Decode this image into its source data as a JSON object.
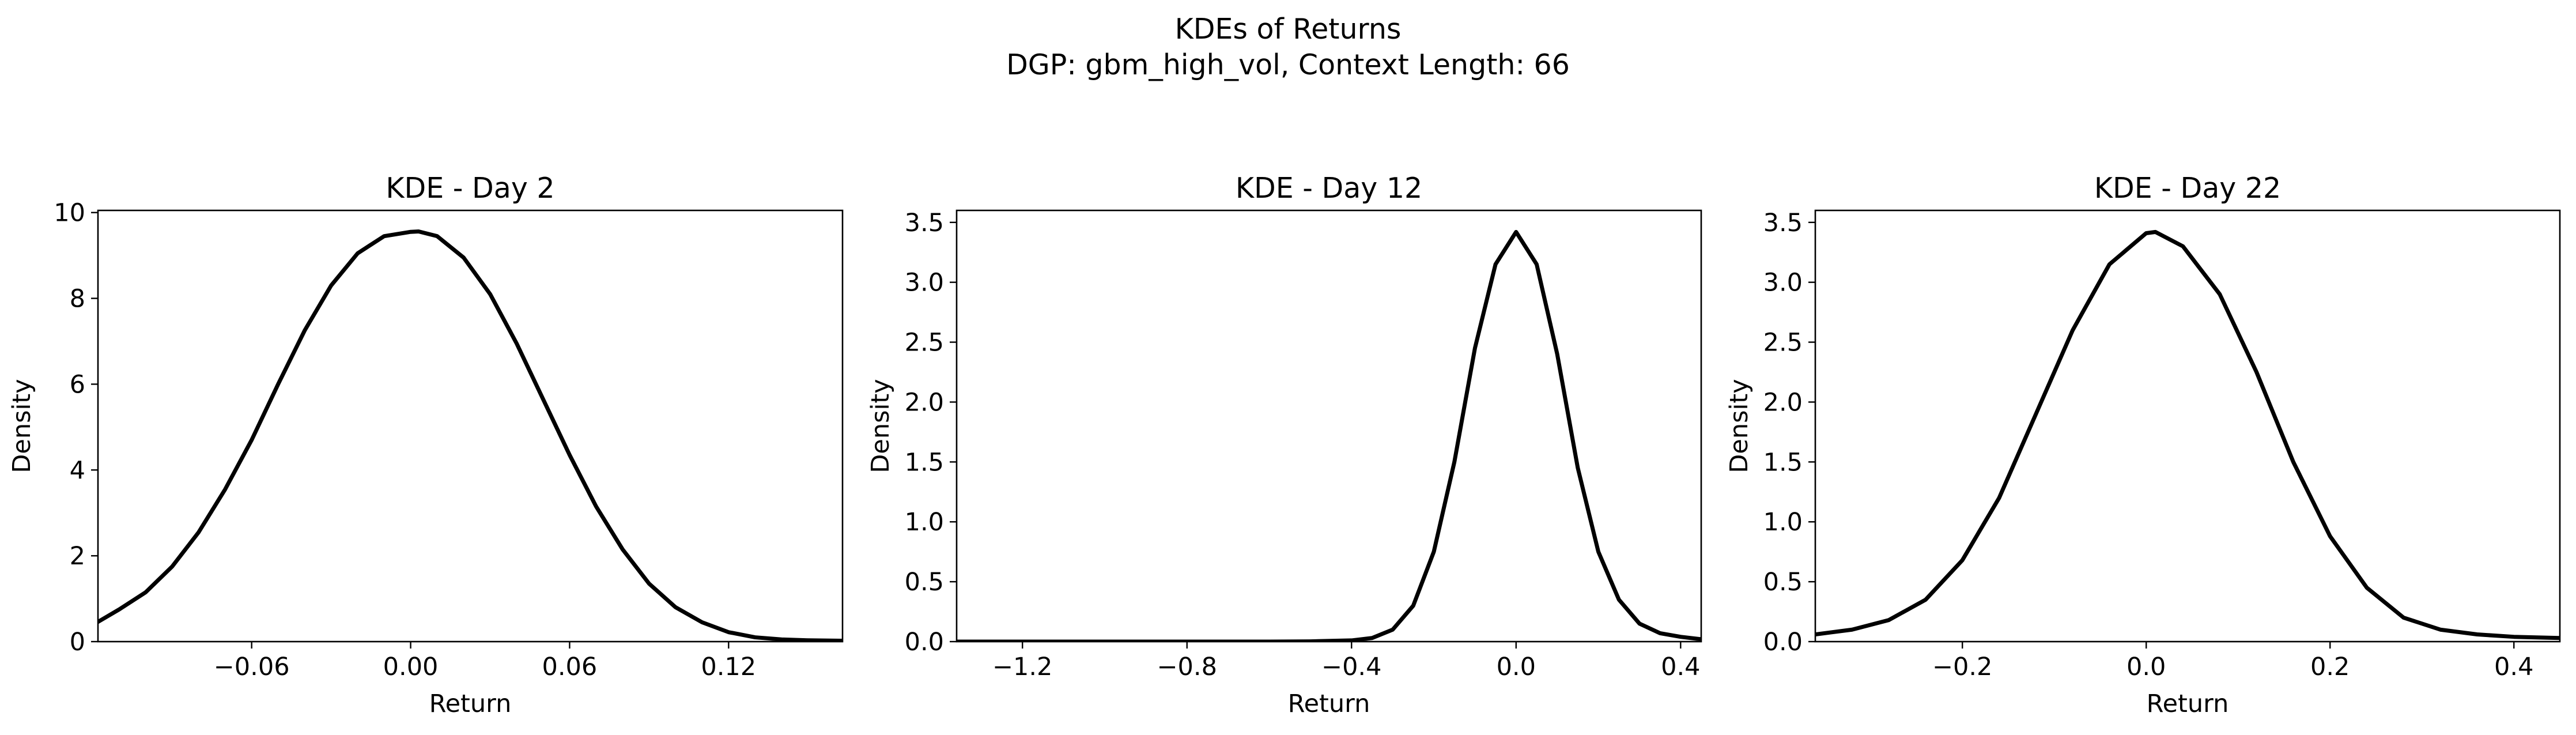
{
  "figure": {
    "title_line1": "KDEs of Returns",
    "title_line2": "DGP: gbm_high_vol, Context Length: 66"
  },
  "chart_data": [
    {
      "type": "line",
      "title": "KDE - Day 2",
      "xlabel": "Return",
      "ylabel": "Density",
      "xlim": [
        -0.118,
        0.163
      ],
      "ylim": [
        0,
        10.05
      ],
      "xticks": [
        -0.06,
        0.0,
        0.06,
        0.12
      ],
      "xtick_labels": [
        "−0.06",
        "0.00",
        "0.06",
        "0.12"
      ],
      "yticks": [
        0,
        2,
        4,
        6,
        8,
        10
      ],
      "ytick_labels": [
        "0",
        "2",
        "4",
        "6",
        "8",
        "10"
      ],
      "grid": false,
      "series": [
        {
          "color": "#000000",
          "x": [
            -0.118,
            -0.11,
            -0.1,
            -0.09,
            -0.08,
            -0.07,
            -0.06,
            -0.05,
            -0.04,
            -0.03,
            -0.02,
            -0.01,
            0.0,
            0.003,
            0.01,
            0.02,
            0.03,
            0.04,
            0.05,
            0.06,
            0.07,
            0.08,
            0.09,
            0.1,
            0.11,
            0.12,
            0.13,
            0.14,
            0.15,
            0.163
          ],
          "y": [
            0.46,
            0.75,
            1.15,
            1.75,
            2.55,
            3.55,
            4.7,
            6.0,
            7.25,
            8.3,
            9.05,
            9.45,
            9.55,
            9.56,
            9.45,
            8.95,
            8.1,
            6.95,
            5.65,
            4.35,
            3.15,
            2.15,
            1.35,
            0.8,
            0.45,
            0.22,
            0.1,
            0.05,
            0.03,
            0.02
          ]
        }
      ]
    },
    {
      "type": "line",
      "title": "KDE - Day 12",
      "xlabel": "Return",
      "ylabel": "Density",
      "xlim": [
        -1.36,
        0.45
      ],
      "ylim": [
        0,
        3.6
      ],
      "xticks": [
        -1.2,
        -0.8,
        -0.4,
        0.0,
        0.4
      ],
      "xtick_labels": [
        "−1.2",
        "−0.8",
        "−0.4",
        "0.0",
        "0.4"
      ],
      "yticks": [
        0.0,
        0.5,
        1.0,
        1.5,
        2.0,
        2.5,
        3.0,
        3.5
      ],
      "ytick_labels": [
        "0.0",
        "0.5",
        "1.0",
        "1.5",
        "2.0",
        "2.5",
        "3.0",
        "3.5"
      ],
      "grid": false,
      "series": [
        {
          "color": "#000000",
          "x": [
            -1.36,
            -1.2,
            -1.0,
            -0.8,
            -0.6,
            -0.5,
            -0.4,
            -0.35,
            -0.3,
            -0.25,
            -0.2,
            -0.15,
            -0.1,
            -0.05,
            0.0,
            0.05,
            0.1,
            0.15,
            0.2,
            0.25,
            0.3,
            0.35,
            0.4,
            0.45
          ],
          "y": [
            0.0,
            0.0,
            0.0,
            0.0,
            0.0,
            0.002,
            0.01,
            0.03,
            0.1,
            0.3,
            0.75,
            1.5,
            2.45,
            3.15,
            3.42,
            3.15,
            2.4,
            1.45,
            0.75,
            0.35,
            0.15,
            0.07,
            0.04,
            0.02
          ]
        }
      ]
    },
    {
      "type": "line",
      "title": "KDE - Day 22",
      "xlabel": "Return",
      "ylabel": "Density",
      "xlim": [
        -0.36,
        0.45
      ],
      "ylim": [
        0,
        3.6
      ],
      "xticks": [
        -0.2,
        0.0,
        0.2,
        0.4
      ],
      "xtick_labels": [
        "−0.2",
        "0.0",
        "0.2",
        "0.4"
      ],
      "yticks": [
        0.0,
        0.5,
        1.0,
        1.5,
        2.0,
        2.5,
        3.0,
        3.5
      ],
      "ytick_labels": [
        "0.0",
        "0.5",
        "1.0",
        "1.5",
        "2.0",
        "2.5",
        "3.0",
        "3.5"
      ],
      "grid": false,
      "series": [
        {
          "color": "#000000",
          "x": [
            -0.36,
            -0.32,
            -0.28,
            -0.24,
            -0.2,
            -0.16,
            -0.12,
            -0.08,
            -0.04,
            0.0,
            0.01,
            0.04,
            0.08,
            0.12,
            0.16,
            0.2,
            0.24,
            0.28,
            0.32,
            0.36,
            0.4,
            0.45
          ],
          "y": [
            0.06,
            0.1,
            0.18,
            0.35,
            0.68,
            1.2,
            1.9,
            2.6,
            3.15,
            3.41,
            3.42,
            3.3,
            2.9,
            2.25,
            1.5,
            0.88,
            0.45,
            0.2,
            0.1,
            0.06,
            0.04,
            0.03
          ]
        }
      ]
    }
  ]
}
